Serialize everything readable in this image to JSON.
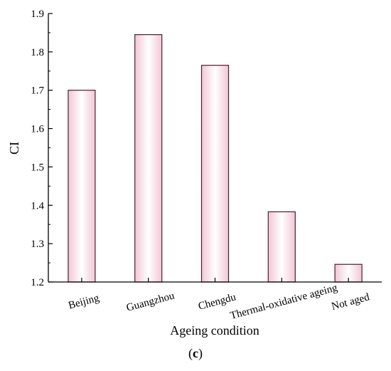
{
  "chart_data": {
    "type": "bar",
    "categories": [
      "Beijing",
      "Guangzhou",
      "Chengdu",
      "Thermal-oxidative ageing",
      "Not aged"
    ],
    "values": [
      1.7,
      1.845,
      1.765,
      1.383,
      1.246
    ],
    "xlabel": "Ageing condition",
    "ylabel": "CI",
    "ylim": [
      1.2,
      1.9
    ],
    "yticks": [
      "1.2",
      "1.3",
      "1.4",
      "1.5",
      "1.6",
      "1.7",
      "1.8",
      "1.9"
    ],
    "grid": false,
    "colors": {
      "bar_center": "#ffffff",
      "bar_edge": "#f2c6d6",
      "bar_stroke": "#4a2030"
    }
  },
  "caption": {
    "open": "(",
    "letter": "c",
    "close": ")"
  }
}
